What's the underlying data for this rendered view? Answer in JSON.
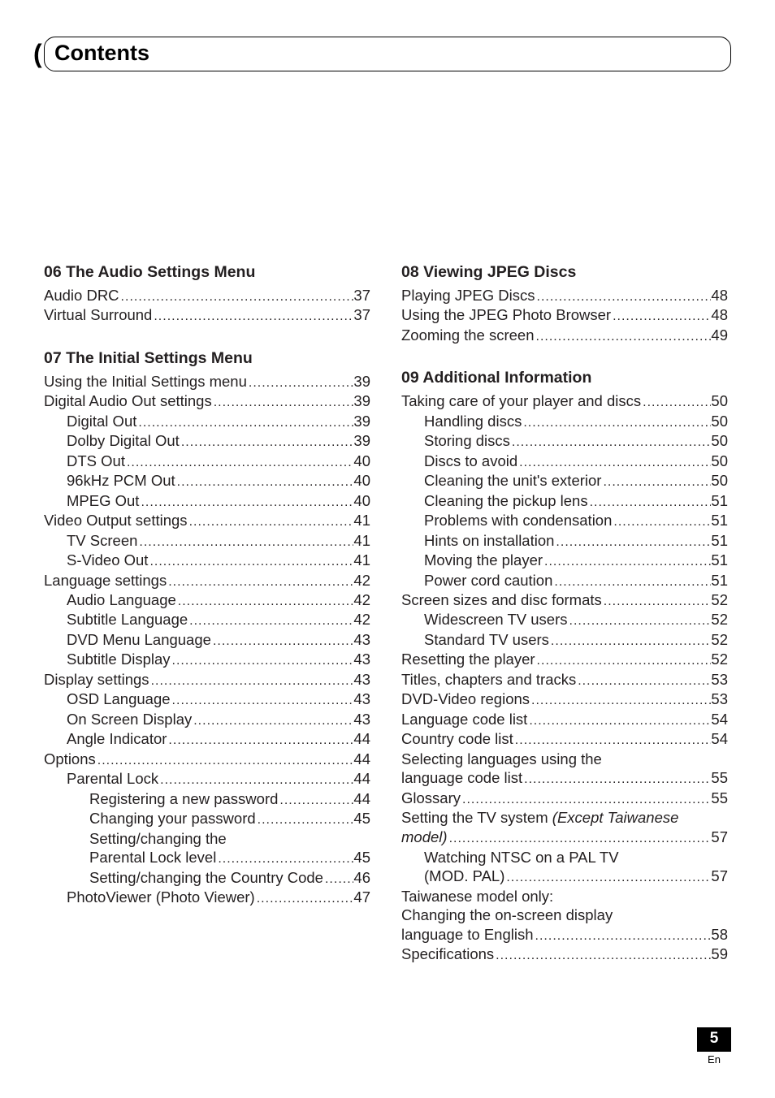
{
  "page_title": "Contents",
  "page_number": "5",
  "page_lang": "En",
  "left": {
    "s06": {
      "head": "06  The Audio Settings Menu",
      "items": [
        {
          "label": "Audio DRC",
          "pg": "37",
          "indent": 0
        },
        {
          "label": "Virtual Surround",
          "pg": "37",
          "indent": 0
        }
      ]
    },
    "s07": {
      "head": "07  The Initial Settings Menu",
      "items": [
        {
          "label": "Using the Initial Settings menu",
          "pg": "39",
          "indent": 0
        },
        {
          "label": "Digital Audio Out settings",
          "pg": "39",
          "indent": 0
        },
        {
          "label": "Digital Out",
          "pg": "39",
          "indent": 1
        },
        {
          "label": "Dolby Digital Out",
          "pg": "39",
          "indent": 1
        },
        {
          "label": "DTS Out",
          "pg": "40",
          "indent": 1
        },
        {
          "label": "96kHz PCM Out",
          "pg": "40",
          "indent": 1
        },
        {
          "label": "MPEG Out",
          "pg": "40",
          "indent": 1
        },
        {
          "label": "Video Output settings",
          "pg": "41",
          "indent": 0
        },
        {
          "label": "TV Screen",
          "pg": "41",
          "indent": 1
        },
        {
          "label": "S-Video Out",
          "pg": "41",
          "indent": 1
        },
        {
          "label": "Language settings",
          "pg": "42",
          "indent": 0
        },
        {
          "label": "Audio Language",
          "pg": "42",
          "indent": 1
        },
        {
          "label": "Subtitle Language",
          "pg": "42",
          "indent": 1
        },
        {
          "label": "DVD Menu Language",
          "pg": "43",
          "indent": 1
        },
        {
          "label": "Subtitle Display",
          "pg": "43",
          "indent": 1
        },
        {
          "label": "Display settings",
          "pg": "43",
          "indent": 0
        },
        {
          "label": "OSD Language",
          "pg": "43",
          "indent": 1
        },
        {
          "label": "On Screen Display",
          "pg": "43",
          "indent": 1
        },
        {
          "label": "Angle Indicator",
          "pg": "44",
          "indent": 1
        },
        {
          "label": "Options",
          "pg": "44",
          "indent": 0
        },
        {
          "label": "Parental Lock",
          "pg": "44",
          "indent": 1
        },
        {
          "label": "Registering a new password",
          "pg": "44",
          "indent": 2
        },
        {
          "label": "Changing your password",
          "pg": "45",
          "indent": 2
        },
        {
          "label": "Setting/changing the",
          "pg": "",
          "indent": 2,
          "nodots": true
        },
        {
          "label": "Parental Lock level",
          "pg": "45",
          "indent": 2
        },
        {
          "label": "Setting/changing the Country Code",
          "pg": "46",
          "indent": 2
        },
        {
          "label": "PhotoViewer (Photo Viewer)",
          "pg": "47",
          "indent": 1
        }
      ]
    }
  },
  "right": {
    "s08": {
      "head": "08  Viewing JPEG Discs",
      "items": [
        {
          "label": "Playing JPEG Discs",
          "pg": "48",
          "indent": 0
        },
        {
          "label": "Using the JPEG Photo Browser",
          "pg": "48",
          "indent": 0
        },
        {
          "label": "Zooming the screen",
          "pg": "49",
          "indent": 0
        }
      ]
    },
    "s09": {
      "head": "09  Additional Information",
      "items": [
        {
          "label": "Taking care of your player and discs",
          "pg": "50",
          "indent": 0
        },
        {
          "label": "Handling discs",
          "pg": "50",
          "indent": 1
        },
        {
          "label": "Storing discs",
          "pg": "50",
          "indent": 1
        },
        {
          "label": "Discs to avoid",
          "pg": "50",
          "indent": 1
        },
        {
          "label": "Cleaning the unit's exterior",
          "pg": "50",
          "indent": 1
        },
        {
          "label": "Cleaning the pickup lens",
          "pg": "51",
          "indent": 1
        },
        {
          "label": "Problems with condensation",
          "pg": "51",
          "indent": 1
        },
        {
          "label": "Hints on installation",
          "pg": "51",
          "indent": 1
        },
        {
          "label": "Moving the player",
          "pg": "51",
          "indent": 1
        },
        {
          "label": "Power cord caution",
          "pg": "51",
          "indent": 1
        },
        {
          "label": "Screen sizes and disc formats",
          "pg": "52",
          "indent": 0
        },
        {
          "label": "Widescreen TV users",
          "pg": "52",
          "indent": 1
        },
        {
          "label": "Standard TV users",
          "pg": "52",
          "indent": 1
        },
        {
          "label": "Resetting the player",
          "pg": "52",
          "indent": 0
        },
        {
          "label": "Titles, chapters and tracks",
          "pg": "53",
          "indent": 0
        },
        {
          "label": "DVD-Video regions",
          "pg": "53",
          "indent": 0
        },
        {
          "label": "Language code list",
          "pg": "54",
          "indent": 0
        },
        {
          "label": "Country code list",
          "pg": "54",
          "indent": 0
        },
        {
          "label": "Selecting languages using the",
          "pg": "",
          "indent": 0,
          "nodots": true
        },
        {
          "label": "language code list",
          "pg": "55",
          "indent": 0
        },
        {
          "label": "Glossary",
          "pg": "55",
          "indent": 0
        },
        {
          "label_html": "Setting the TV system <span class=\"italic\">(Except Taiwanese</span>",
          "pg": "",
          "indent": 0,
          "nodots": true
        },
        {
          "label_html": "<span class=\"italic\">model)</span>",
          "pg": "57",
          "indent": 0
        },
        {
          "label": "Watching NTSC on a PAL TV",
          "pg": "",
          "indent": 1,
          "nodots": true
        },
        {
          "label": "(MOD. PAL)",
          "pg": "57",
          "indent": 1
        },
        {
          "label": "Taiwanese model only:",
          "pg": "",
          "indent": 0,
          "nodots": true
        },
        {
          "label": "Changing the on-screen display",
          "pg": "",
          "indent": 0,
          "nodots": true
        },
        {
          "label": "language to English",
          "pg": "58",
          "indent": 0
        },
        {
          "label": "Specifications",
          "pg": "59",
          "indent": 0
        }
      ]
    }
  }
}
